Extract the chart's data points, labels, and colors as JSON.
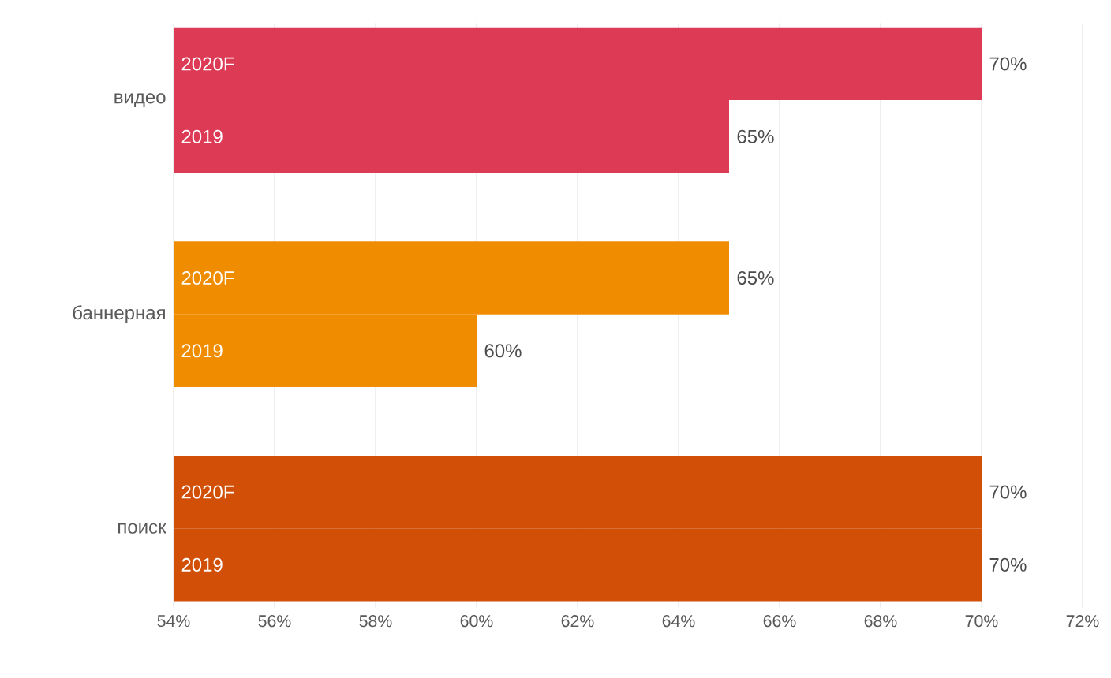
{
  "chart_data": {
    "type": "bar",
    "orientation": "horizontal",
    "categories": [
      "видео",
      "баннерная",
      "поиск"
    ],
    "series": [
      {
        "name": "2020F",
        "colors": [
          "#dc3a55",
          "#f08c00",
          "#d24f08"
        ],
        "values": [
          70,
          65,
          70
        ],
        "value_labels": [
          "70%",
          "65%",
          "70%"
        ]
      },
      {
        "name": "2019",
        "colors": [
          "#dc3a55",
          "#f08c00",
          "#d24f08"
        ],
        "values": [
          65,
          60,
          70
        ],
        "value_labels": [
          "65%",
          "60%",
          "70%"
        ]
      }
    ],
    "xlim": [
      54,
      72
    ],
    "xticks": [
      {
        "value": 54,
        "label": "54%"
      },
      {
        "value": 56,
        "label": "56%"
      },
      {
        "value": 58,
        "label": "58%"
      },
      {
        "value": 60,
        "label": "60%"
      },
      {
        "value": 62,
        "label": "62%"
      },
      {
        "value": 64,
        "label": "64%"
      },
      {
        "value": 66,
        "label": "66%"
      },
      {
        "value": 68,
        "label": "68%"
      },
      {
        "value": 70,
        "label": "70%"
      },
      {
        "value": 72,
        "label": "72%"
      }
    ],
    "grid": "x"
  }
}
